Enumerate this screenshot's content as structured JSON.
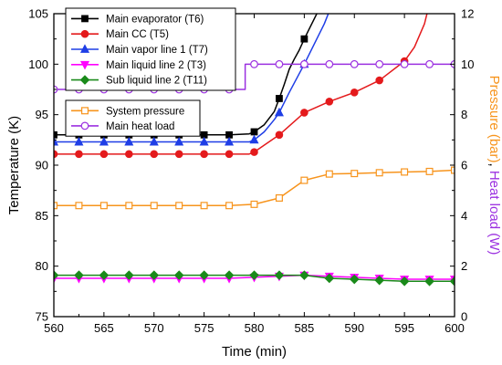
{
  "chart_data": {
    "type": "line",
    "x_label": "Time (min)",
    "y_left_label": "Temperature (K)",
    "y_right_label_parts": [
      "Pressure (bar)",
      ", ",
      "Heat load (W)"
    ],
    "x_ticks": [
      560,
      565,
      570,
      575,
      580,
      585,
      590,
      595,
      600
    ],
    "y_left_ticks": [
      75,
      80,
      85,
      90,
      95,
      100,
      105
    ],
    "y_right_ticks": [
      0,
      2,
      4,
      6,
      8,
      10,
      12
    ],
    "xlim": [
      560,
      600
    ],
    "ylim_left": [
      75,
      105
    ],
    "ylim_right": [
      0,
      12
    ],
    "grid": false,
    "legend_position": "top-left",
    "colors": {
      "pressure_axis": "#f7941d",
      "heat_axis": "#9b30e0"
    },
    "series": [
      {
        "name": "Main evaporator (T6)",
        "axis": "left",
        "color": "#000000",
        "marker": "square-filled",
        "x": [
          560,
          562.5,
          565,
          567.5,
          570,
          572.5,
          575,
          577.5,
          579.5,
          580,
          581,
          582,
          582.5,
          583,
          583.5,
          584,
          584.5,
          585,
          585.5,
          586,
          586.5,
          587
        ],
        "y": [
          93.0,
          93.0,
          93.0,
          93.0,
          93.0,
          93.0,
          93.0,
          93.0,
          93.1,
          93.3,
          94.0,
          95.3,
          96.6,
          98.0,
          99.5,
          100.5,
          101.4,
          102.5,
          103.5,
          104.5,
          105.5,
          107
        ]
      },
      {
        "name": "Main CC (T5)",
        "axis": "left",
        "color": "#e41a1c",
        "marker": "circle-filled",
        "x": [
          560,
          562.5,
          565,
          567.5,
          570,
          572.5,
          575,
          577.5,
          579.5,
          580,
          582.5,
          585,
          587.5,
          590,
          592.5,
          595,
          596,
          597,
          597.5
        ],
        "y": [
          91.1,
          91.1,
          91.1,
          91.1,
          91.1,
          91.1,
          91.1,
          91.1,
          91.1,
          91.3,
          93.0,
          95.2,
          96.3,
          97.2,
          98.4,
          100.3,
          101.7,
          104.0,
          106
        ]
      },
      {
        "name": "Main vapor line 1 (T7)",
        "axis": "left",
        "color": "#1f3ee6",
        "marker": "triangle-up-filled",
        "x": [
          560,
          562.5,
          565,
          567.5,
          570,
          572.5,
          575,
          577.5,
          579.5,
          580,
          581,
          582,
          582.5,
          583.5,
          585,
          586,
          587,
          587.8
        ],
        "y": [
          92.3,
          92.3,
          92.3,
          92.3,
          92.3,
          92.3,
          92.3,
          92.3,
          92.3,
          92.5,
          93.3,
          94.5,
          95.2,
          97.2,
          100.0,
          102.0,
          104.0,
          106
        ]
      },
      {
        "name": "Main liquid line 2 (T3)",
        "axis": "left",
        "color": "#ff00ff",
        "marker": "triangle-down-filled",
        "x": [
          560,
          562.5,
          565,
          567.5,
          570,
          572.5,
          575,
          577.5,
          580,
          582.5,
          585,
          587.5,
          590,
          592.5,
          595,
          597.5,
          600
        ],
        "y": [
          78.8,
          78.8,
          78.8,
          78.8,
          78.8,
          78.8,
          78.8,
          78.8,
          78.9,
          79.0,
          79.1,
          79.0,
          78.9,
          78.8,
          78.7,
          78.7,
          78.7
        ]
      },
      {
        "name": "Sub liquid line 2 (T11)",
        "axis": "left",
        "color": "#1a8a1a",
        "marker": "diamond-filled",
        "x": [
          560,
          562.5,
          565,
          567.5,
          570,
          572.5,
          575,
          577.5,
          580,
          582.5,
          585,
          587.5,
          590,
          592.5,
          595,
          597.5,
          600
        ],
        "y": [
          79.1,
          79.1,
          79.1,
          79.1,
          79.1,
          79.1,
          79.1,
          79.1,
          79.1,
          79.1,
          79.1,
          78.8,
          78.7,
          78.6,
          78.5,
          78.5,
          78.5
        ]
      },
      {
        "name": "System pressure",
        "axis": "right",
        "color": "#f7941d",
        "marker": "square-open",
        "x": [
          560,
          562.5,
          565,
          567.5,
          570,
          572.5,
          575,
          577.5,
          580,
          582.5,
          585,
          587.5,
          590,
          592.5,
          595,
          597.5,
          600
        ],
        "y": [
          4.4,
          4.4,
          4.4,
          4.4,
          4.4,
          4.4,
          4.4,
          4.4,
          4.45,
          4.7,
          5.4,
          5.65,
          5.67,
          5.7,
          5.73,
          5.75,
          5.8
        ]
      },
      {
        "name": "Main heat load",
        "axis": "right",
        "color": "#9b30e0",
        "marker": "circle-open",
        "x": [
          560,
          562.5,
          565,
          567.5,
          570,
          572.5,
          575,
          577.5,
          579,
          579.1,
          580,
          582.5,
          585,
          587.5,
          590,
          592.5,
          595,
          597.5,
          600
        ],
        "y": [
          9.0,
          9.0,
          9.0,
          9.0,
          9.0,
          9.0,
          9.0,
          9.0,
          9.0,
          10.0,
          10.0,
          10.0,
          10.0,
          10.0,
          10.0,
          10.0,
          10.0,
          10.0,
          10.0
        ],
        "marker_x": [
          560,
          562.5,
          565,
          567.5,
          570,
          572.5,
          575,
          577.5,
          580,
          582.5,
          585,
          587.5,
          590,
          592.5,
          595,
          597.5,
          600
        ]
      }
    ]
  }
}
